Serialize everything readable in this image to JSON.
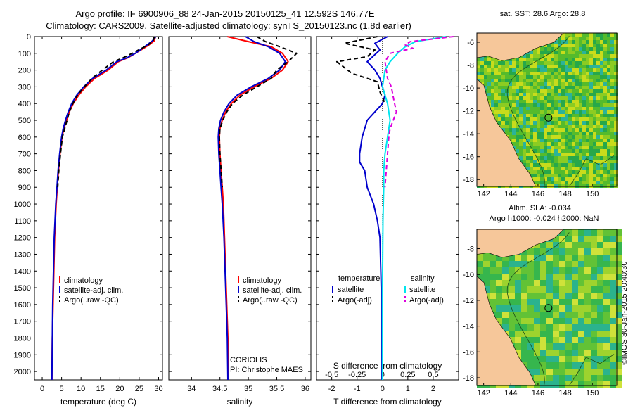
{
  "header": {
    "line1": "Argo profile: IF 6900906_88 24-Jan-2015 20150125_41 12.592S 146.77E",
    "line2": "Climatology: CARS2009. Satellite-adjusted climatology: synTS_20150123.nc (1.8d earlier)"
  },
  "side_label": "©IMOS 30-Jan-2015 20:40:30",
  "colors": {
    "climatology": "#ff0000",
    "satellite": "#0000cc",
    "argo": "#000000",
    "sal_satellite": "#00e5ee",
    "sal_argo": "#dd00dd",
    "land": "#f6c79a"
  },
  "chart_data": [
    {
      "type": "line",
      "xlabel": "temperature (deg C)",
      "xlim": [
        -2,
        31
      ],
      "xticks": [
        0,
        5,
        10,
        15,
        20,
        25,
        30
      ],
      "ylim": [
        0,
        2050
      ],
      "yticks": [
        0,
        100,
        200,
        300,
        400,
        500,
        600,
        700,
        800,
        900,
        1000,
        1100,
        1200,
        1300,
        1400,
        1500,
        1600,
        1700,
        1800,
        1900,
        2000
      ],
      "y_reversed": true,
      "legend": [
        "climatology",
        "satellite-adj. clim.",
        "Argo(..raw -QC)"
      ],
      "series": [
        {
          "name": "climatology",
          "x": [
            29.2,
            28.9,
            27.5,
            25.8,
            24,
            22.2,
            19.6,
            17,
            13.5,
            11.2,
            9.4,
            8,
            7,
            6.3,
            5.6,
            5.1,
            4.6,
            4.2,
            3.9,
            3.6,
            3.4,
            3.2,
            3,
            2.8,
            2.6,
            2.5
          ],
          "y": [
            0,
            25,
            50,
            75,
            100,
            125,
            150,
            200,
            250,
            300,
            350,
            400,
            450,
            500,
            550,
            600,
            700,
            800,
            900,
            1000,
            1100,
            1200,
            1400,
            1600,
            1800,
            2050
          ]
        },
        {
          "name": "satellite-adj. clim.",
          "x": [
            29.3,
            28.4,
            27,
            25.5,
            24,
            22,
            19.2,
            16.5,
            13,
            10.7,
            8.9,
            7.6,
            6.7,
            6,
            5.4,
            5,
            4.5,
            4.1,
            3.8,
            3.5,
            3.3,
            3.1,
            2.9,
            2.7,
            2.6,
            2.5
          ],
          "y": [
            0,
            25,
            50,
            75,
            100,
            125,
            150,
            200,
            250,
            300,
            350,
            400,
            450,
            500,
            550,
            600,
            700,
            800,
            900,
            1000,
            1100,
            1200,
            1400,
            1600,
            1800,
            2050
          ]
        },
        {
          "name": "Argo(..raw -QC)",
          "x": [
            28.9,
            28.6,
            27.3,
            25.2,
            23.2,
            21,
            18.4,
            15.5,
            12.8,
            10.9,
            9.1,
            7.9,
            7,
            6.4,
            5.8,
            5.2,
            4.7,
            4.3,
            4
          ],
          "y": [
            0,
            25,
            50,
            75,
            100,
            125,
            150,
            200,
            250,
            300,
            350,
            400,
            450,
            500,
            550,
            600,
            700,
            800,
            900
          ]
        }
      ]
    },
    {
      "type": "line",
      "xlabel": "salinity",
      "xlim": [
        33.6,
        36.1
      ],
      "xticks": [
        34,
        34.5,
        35,
        35.5,
        36
      ],
      "ylim": [
        0,
        2050
      ],
      "y_reversed": true,
      "legend": [
        "climatology",
        "satellite-adj. clim.",
        "Argo(..raw -QC)"
      ],
      "annotation": [
        "CORIOLIS",
        "PI: Christophe MAES"
      ],
      "series": [
        {
          "name": "climatology",
          "x": [
            34.63,
            35.0,
            35.4,
            35.6,
            35.7,
            35.6,
            35.4,
            35.1,
            34.85,
            34.7,
            34.6,
            34.54,
            34.5,
            34.49,
            34.5,
            34.52,
            34.54,
            34.56,
            34.58,
            34.6,
            34.62,
            34.64,
            34.65
          ],
          "y": [
            0,
            30,
            60,
            100,
            150,
            200,
            250,
            300,
            350,
            400,
            450,
            500,
            550,
            600,
            700,
            800,
            900,
            1000,
            1200,
            1400,
            1600,
            1800,
            2050
          ]
        },
        {
          "name": "satellite-adj. clim.",
          "x": [
            34.95,
            35.1,
            35.35,
            35.55,
            35.65,
            35.55,
            35.35,
            35.05,
            34.8,
            34.66,
            34.57,
            34.51,
            34.48,
            34.47,
            34.48,
            34.5,
            34.52,
            34.54,
            34.57,
            34.59,
            34.61,
            34.63,
            34.64
          ],
          "y": [
            0,
            30,
            60,
            100,
            150,
            200,
            250,
            300,
            350,
            400,
            450,
            500,
            550,
            600,
            700,
            800,
            900,
            1000,
            1200,
            1400,
            1600,
            1800,
            2050
          ]
        },
        {
          "name": "Argo(..raw -QC)",
          "x": [
            35.15,
            35.3,
            35.55,
            35.85,
            35.7,
            35.5,
            35.4,
            35.15,
            34.9,
            34.72,
            34.62,
            34.55,
            34.5,
            34.49,
            34.5,
            34.52,
            34.54
          ],
          "y": [
            0,
            30,
            60,
            100,
            150,
            200,
            250,
            300,
            350,
            400,
            450,
            500,
            550,
            600,
            700,
            800,
            900
          ]
        }
      ]
    },
    {
      "type": "line",
      "xlabel": "T difference from climatology",
      "xlabel_top": "S difference from climatology",
      "xlim": [
        -2.6,
        3.0
      ],
      "xticks": [
        -2,
        -1,
        0,
        1,
        2
      ],
      "xticks_top": [
        "-0.5",
        "-0.25",
        "0",
        "0.25",
        "0.5"
      ],
      "ylim": [
        0,
        2050
      ],
      "y_reversed": true,
      "legend_left_title": "temperature",
      "legend_right_title": "salinity",
      "legend_left": [
        "satellite",
        "Argo(-adj)"
      ],
      "legend_right": [
        "satellite",
        "Argo(-adj)"
      ],
      "series": [
        {
          "name": "temperature satellite",
          "x": [
            0.2,
            -0.3,
            -0.1,
            -0.6,
            -0.3,
            -0.1,
            0,
            0.1,
            0,
            -0.3,
            -0.6,
            -0.8,
            -0.9,
            -0.9,
            -0.7,
            -0.6,
            -0.35,
            -0.2,
            -0.1,
            -0.05,
            -0.05
          ],
          "y": [
            0,
            40,
            80,
            150,
            200,
            250,
            300,
            350,
            400,
            450,
            500,
            600,
            700,
            750,
            800,
            900,
            1000,
            1100,
            1200,
            1500,
            2050
          ]
        },
        {
          "name": "temperature Argo(-adj)",
          "x": [
            -0.2,
            -1.5,
            -0.3,
            -0.6,
            -1.8,
            -1.2,
            -0.2,
            -0.1,
            0.1
          ],
          "y": [
            0,
            40,
            80,
            120,
            150,
            220,
            270,
            330,
            400
          ]
        },
        {
          "name": "salinity satellite",
          "x": [
            2.5,
            1.3,
            0.9,
            0.6,
            0.3,
            0.1,
            0,
            0.2,
            0.3,
            0.2,
            0.1,
            0.05,
            0.05,
            0.02,
            0,
            0
          ],
          "y": [
            0,
            30,
            60,
            100,
            150,
            200,
            300,
            400,
            500,
            600,
            700,
            800,
            900,
            1100,
            1500,
            2050
          ]
        },
        {
          "name": "salinity Argo(-adj)",
          "x": [
            2.8,
            1.1,
            0.9,
            1.2,
            0.3,
            0.1,
            0.2,
            0.35,
            0.45,
            0.55,
            0.3,
            0.25,
            0.2,
            0.1
          ],
          "y": [
            0,
            30,
            50,
            70,
            100,
            150,
            250,
            300,
            380,
            450,
            550,
            600,
            700,
            900
          ]
        }
      ]
    },
    {
      "type": "heatmap",
      "title": "sat. SST: 28.6 Argo: 28.8",
      "xlim": [
        141.5,
        151.8
      ],
      "xticks": [
        142,
        144,
        146,
        148,
        150
      ],
      "ylim": [
        -18.6,
        -5.2
      ],
      "yticks": [
        -6,
        -8,
        -10,
        -12,
        -14,
        -16,
        -18
      ],
      "marker": {
        "lon": 146.77,
        "lat": -12.592
      }
    },
    {
      "type": "heatmap",
      "title": "Altim. SLA: -0.034",
      "subtitle": "Argo h1000: -0.024  h2000: NaN",
      "xlim": [
        141.5,
        151.8
      ],
      "xticks": [
        142,
        144,
        146,
        148,
        150
      ],
      "ylim": [
        -18.6,
        -6.5
      ],
      "yticks": [
        -8,
        -10,
        -12,
        -14,
        -16,
        -18
      ],
      "marker": {
        "lon": 146.77,
        "lat": -12.592
      }
    }
  ]
}
